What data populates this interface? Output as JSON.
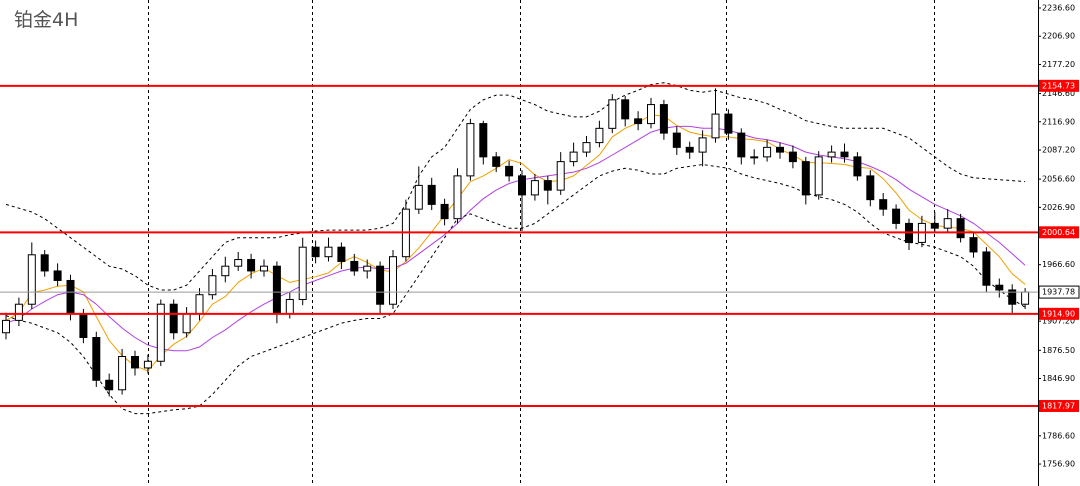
{
  "chart_data": {
    "type": "candlestick",
    "title": "铂金4H",
    "ylim": [
      1733.8,
      2245.0
    ],
    "yticks": [
      {
        "value": 2236.6,
        "label": "2236.60"
      },
      {
        "value": 2206.9,
        "label": "2206.90"
      },
      {
        "value": 2177.2,
        "label": "2177.20"
      },
      {
        "value": 2146.6,
        "label": "2146.60"
      },
      {
        "value": 2116.9,
        "label": "2116.90"
      },
      {
        "value": 2087.2,
        "label": "2087.20"
      },
      {
        "value": 2056.6,
        "label": "2056.60"
      },
      {
        "value": 2026.9,
        "label": "2026.90"
      },
      {
        "value": 1966.6,
        "label": "1966.60"
      },
      {
        "value": 1907.2,
        "label": "1907.20"
      },
      {
        "value": 1876.5,
        "label": "1876.50"
      },
      {
        "value": 1846.9,
        "label": "1846.90"
      },
      {
        "value": 1786.6,
        "label": "1786.60"
      },
      {
        "value": 1756.9,
        "label": "1756.90"
      }
    ],
    "levels": [
      2154.73,
      2000.64,
      {
        "value": 1914.9,
        "label": "1914.90"
      },
      1817.97
    ],
    "level_color": "#ff0000",
    "current_price": 1937.78,
    "up_color": "#ffffff",
    "down_color": "#000000",
    "open": [
      1895,
      1908,
      1925,
      1977,
      1960,
      1950,
      1915,
      1890,
      1845,
      1835,
      1870,
      1858,
      1865,
      1925,
      1895,
      1915,
      1935,
      1955,
      1965,
      1972,
      1960,
      1965,
      1915,
      1930,
      1985,
      1975,
      1985,
      1970,
      1960,
      1965,
      1925,
      1975,
      2025,
      2050,
      2030,
      2015,
      2060,
      2115,
      2080,
      2070,
      2060,
      2040,
      2055,
      2045,
      2075,
      2085,
      2095,
      2110,
      2140,
      2120,
      2115,
      2135,
      2105,
      2090,
      2085,
      2100,
      2125,
      2105,
      2080,
      2080,
      2090,
      2085,
      2075,
      2040,
      2080,
      2085,
      2080,
      2060,
      2035,
      2025,
      2010,
      1990,
      2010,
      2005,
      2015,
      1995,
      1980,
      1945,
      1940,
      1925
    ],
    "high": [
      1916,
      1932,
      1990,
      1982,
      1968,
      1956,
      1920,
      1896,
      1852,
      1878,
      1876,
      1872,
      1930,
      1930,
      1922,
      1942,
      1962,
      1975,
      1980,
      1978,
      1972,
      1970,
      1938,
      1995,
      1992,
      1995,
      1990,
      1978,
      1972,
      1970,
      1982,
      2035,
      2070,
      2058,
      2036,
      2068,
      2120,
      2118,
      2085,
      2076,
      2066,
      2062,
      2060,
      2085,
      2095,
      2102,
      2118,
      2146,
      2144,
      2128,
      2142,
      2140,
      2112,
      2096,
      2108,
      2152,
      2130,
      2110,
      2088,
      2098,
      2095,
      2092,
      2080,
      2086,
      2092,
      2094,
      2085,
      2066,
      2042,
      2030,
      2015,
      2018,
      2022,
      2025,
      2020,
      2000,
      1985,
      1952,
      1946,
      1942
    ],
    "low": [
      1888,
      1902,
      1920,
      1954,
      1944,
      1908,
      1884,
      1838,
      1828,
      1830,
      1850,
      1852,
      1860,
      1888,
      1890,
      1908,
      1930,
      1948,
      1960,
      1952,
      1954,
      1905,
      1910,
      1924,
      1968,
      1970,
      1962,
      1955,
      1952,
      1915,
      1920,
      1970,
      2020,
      2024,
      2008,
      2010,
      2055,
      2072,
      2064,
      2054,
      2002,
      2034,
      2030,
      2040,
      2070,
      2080,
      2090,
      2105,
      2112,
      2108,
      2110,
      2098,
      2082,
      2078,
      2070,
      2095,
      2098,
      2072,
      2072,
      2075,
      2078,
      2068,
      2030,
      2035,
      2074,
      2074,
      2055,
      2028,
      2018,
      2004,
      1982,
      1985,
      2000,
      2000,
      1990,
      1974,
      1938,
      1932,
      1915,
      1920
    ],
    "close": [
      1908,
      1925,
      1977,
      1960,
      1950,
      1915,
      1890,
      1845,
      1835,
      1870,
      1858,
      1865,
      1925,
      1895,
      1915,
      1935,
      1955,
      1965,
      1972,
      1960,
      1965,
      1915,
      1930,
      1985,
      1975,
      1985,
      1970,
      1960,
      1965,
      1925,
      1975,
      2025,
      2050,
      2030,
      2015,
      2060,
      2115,
      2080,
      2070,
      2060,
      2040,
      2055,
      2045,
      2075,
      2085,
      2095,
      2110,
      2140,
      2120,
      2115,
      2135,
      2105,
      2090,
      2085,
      2100,
      2125,
      2105,
      2080,
      2080,
      2090,
      2085,
      2075,
      2040,
      2080,
      2085,
      2080,
      2060,
      2035,
      2025,
      2010,
      1990,
      2010,
      2005,
      2015,
      1995,
      1980,
      1945,
      1940,
      1925,
      1937.78
    ],
    "overlays": [
      {
        "color": "#f0a000",
        "style": "solid",
        "values": [
          1908,
          1916,
          1937,
          1940,
          1944,
          1945,
          1938,
          1912,
          1887,
          1871,
          1860,
          1855,
          1871,
          1883,
          1891,
          1907,
          1925,
          1933,
          1948,
          1957,
          1963,
          1955,
          1948,
          1951,
          1954,
          1958,
          1969,
          1975,
          1969,
          1961,
          1959,
          1970,
          1984,
          2001,
          2019,
          2036,
          2054,
          2060,
          2068,
          2077,
          2073,
          2061,
          2054,
          2055,
          2060,
          2071,
          2082,
          2101,
          2110,
          2116,
          2124,
          2123,
          2113,
          2106,
          2103,
          2101,
          2101,
          2099,
          2098,
          2096,
          2088,
          2082,
          2074,
          2074,
          2073,
          2072,
          2069,
          2068,
          2057,
          2042,
          2024,
          2014,
          2008,
          2006,
          2005,
          2001,
          1988,
          1975,
          1957,
          1946
        ]
      },
      {
        "color": "#b040e0",
        "style": "solid",
        "values": [
          1905,
          1910,
          1920,
          1928,
          1935,
          1938,
          1935,
          1925,
          1912,
          1900,
          1890,
          1882,
          1878,
          1876,
          1876,
          1880,
          1890,
          1898,
          1908,
          1917,
          1925,
          1932,
          1938,
          1945,
          1950,
          1955,
          1960,
          1963,
          1964,
          1962,
          1963,
          1968,
          1978,
          1988,
          1998,
          2010,
          2024,
          2036,
          2045,
          2052,
          2056,
          2058,
          2060,
          2062,
          2064,
          2068,
          2074,
          2082,
          2090,
          2098,
          2106,
          2110,
          2112,
          2112,
          2110,
          2110,
          2108,
          2104,
          2100,
          2098,
          2095,
          2091,
          2085,
          2082,
          2080,
          2078,
          2075,
          2070,
          2064,
          2056,
          2046,
          2038,
          2030,
          2024,
          2018,
          2010,
          2000,
          1990,
          1978,
          1966
        ]
      },
      {
        "color": "#000000",
        "style": "dashed",
        "values": [
          2030,
          2026,
          2022,
          2015,
          2005,
          1995,
          1985,
          1975,
          1965,
          1962,
          1955,
          1945,
          1940,
          1940,
          1945,
          1960,
          1975,
          1990,
          1995,
          1995,
          1995,
          1995,
          1998,
          2000,
          2002,
          2003,
          2003,
          2003,
          2003,
          2005,
          2010,
          2030,
          2060,
          2080,
          2090,
          2110,
          2130,
          2140,
          2145,
          2145,
          2140,
          2135,
          2128,
          2125,
          2122,
          2122,
          2128,
          2138,
          2145,
          2150,
          2156,
          2158,
          2155,
          2150,
          2148,
          2150,
          2146,
          2142,
          2140,
          2136,
          2130,
          2125,
          2118,
          2115,
          2112,
          2110,
          2110,
          2110,
          2110,
          2105,
          2100,
          2090,
          2080,
          2070,
          2062,
          2058,
          2057,
          2056,
          2055,
          2054
        ]
      },
      {
        "color": "#000000",
        "style": "dashed",
        "values": [
          1913,
          1908,
          1905,
          1900,
          1895,
          1885,
          1870,
          1850,
          1830,
          1815,
          1810,
          1810,
          1812,
          1814,
          1815,
          1818,
          1830,
          1845,
          1860,
          1870,
          1875,
          1880,
          1885,
          1890,
          1895,
          1900,
          1905,
          1908,
          1910,
          1910,
          1915,
          1935,
          1955,
          1975,
          1995,
          2015,
          2020,
          2015,
          2010,
          2005,
          2005,
          2010,
          2020,
          2030,
          2040,
          2050,
          2060,
          2065,
          2068,
          2066,
          2062,
          2062,
          2068,
          2070,
          2072,
          2070,
          2068,
          2062,
          2058,
          2055,
          2052,
          2048,
          2042,
          2038,
          2035,
          2030,
          2022,
          2010,
          2000,
          1995,
          1990,
          1988,
          1985,
          1980,
          1975,
          1965,
          1950,
          1940,
          1930,
          1922
        ]
      }
    ]
  }
}
